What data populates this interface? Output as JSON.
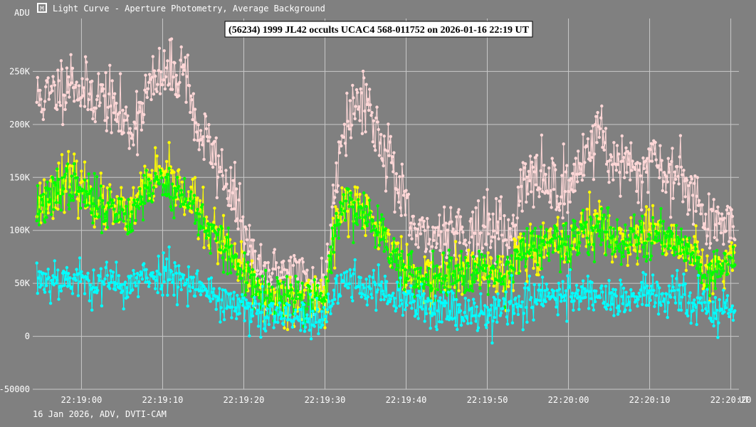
{
  "window": {
    "icon": "light-curve-app-icon",
    "header": "Light Curve - Aperture Photometry, Average Background"
  },
  "footer": "16 Jan 2026, ADV, DVTI-CAM",
  "chart_data": {
    "type": "line",
    "title": "(56234) 1999 JL42 occults UCAC4 568-011752 on 2026-01-16  22:19 UT",
    "ylabel": "ADU",
    "xlabel": "UT",
    "ylim": [
      -50000,
      300000
    ],
    "xlim": [
      -6,
      81
    ],
    "yticks": [
      {
        "v": 250000,
        "label": "250K"
      },
      {
        "v": 200000,
        "label": "200K"
      },
      {
        "v": 150000,
        "label": "150K"
      },
      {
        "v": 100000,
        "label": "100K"
      },
      {
        "v": 50000,
        "label": "50K"
      },
      {
        "v": 0,
        "label": "0"
      },
      {
        "v": -50000,
        "label": "-50000"
      }
    ],
    "xticks": [
      {
        "v": 0,
        "label": "22:19:00"
      },
      {
        "v": 10,
        "label": "22:19:10"
      },
      {
        "v": 20,
        "label": "22:19:20"
      },
      {
        "v": 30,
        "label": "22:19:30"
      },
      {
        "v": 40,
        "label": "22:19:40"
      },
      {
        "v": 50,
        "label": "22:19:50"
      },
      {
        "v": 60,
        "label": "22:20:00"
      },
      {
        "v": 70,
        "label": "22:20:10"
      },
      {
        "v": 80,
        "label": "22:20:20"
      }
    ],
    "sample_interval_s": 0.1,
    "series": [
      {
        "name": "pink",
        "color": "#ffd7d7",
        "noise": 15000,
        "seed": 11,
        "knots": [
          [
            -6,
            225000
          ],
          [
            -4,
            225000
          ],
          [
            -2,
            240000
          ],
          [
            -1,
            245000
          ],
          [
            0,
            230000
          ],
          [
            3,
            225000
          ],
          [
            4,
            215000
          ],
          [
            6,
            195000
          ],
          [
            7,
            210000
          ],
          [
            8,
            230000
          ],
          [
            10,
            245000
          ],
          [
            12,
            250000
          ],
          [
            13,
            255000
          ],
          [
            14,
            195000
          ],
          [
            15,
            190000
          ],
          [
            16,
            175000
          ],
          [
            17,
            160000
          ],
          [
            18,
            145000
          ],
          [
            19,
            125000
          ],
          [
            20,
            95000
          ],
          [
            21,
            75000
          ],
          [
            22,
            55000
          ],
          [
            24,
            60000
          ],
          [
            26,
            65000
          ],
          [
            27,
            55000
          ],
          [
            28,
            50000
          ],
          [
            30,
            45000
          ],
          [
            31,
            125000
          ],
          [
            32,
            195000
          ],
          [
            34,
            220000
          ],
          [
            35,
            230000
          ],
          [
            36,
            200000
          ],
          [
            37,
            185000
          ],
          [
            38,
            170000
          ],
          [
            39,
            140000
          ],
          [
            40,
            115000
          ],
          [
            41,
            100000
          ],
          [
            42,
            90000
          ],
          [
            44,
            95000
          ],
          [
            45,
            105000
          ],
          [
            47,
            100000
          ],
          [
            49,
            95000
          ],
          [
            51,
            105000
          ],
          [
            53,
            90000
          ],
          [
            54,
            140000
          ],
          [
            56,
            150000
          ],
          [
            58,
            145000
          ],
          [
            59,
            140000
          ],
          [
            60,
            135000
          ],
          [
            61,
            155000
          ],
          [
            62,
            175000
          ],
          [
            63,
            180000
          ],
          [
            64,
            200000
          ],
          [
            65,
            165000
          ],
          [
            66,
            165000
          ],
          [
            67,
            160000
          ],
          [
            69,
            150000
          ],
          [
            70,
            175000
          ],
          [
            71,
            170000
          ],
          [
            72,
            150000
          ],
          [
            74,
            150000
          ],
          [
            75,
            145000
          ],
          [
            76,
            130000
          ],
          [
            77,
            100000
          ],
          [
            79,
            110000
          ],
          [
            80,
            115000
          ],
          [
            81,
            100000
          ]
        ]
      },
      {
        "name": "yellow",
        "color": "#ffff00",
        "noise": 12000,
        "seed": 23,
        "knots": [
          [
            -6,
            125000
          ],
          [
            -4,
            130000
          ],
          [
            -3,
            145000
          ],
          [
            -2,
            150000
          ],
          [
            0,
            140000
          ],
          [
            2,
            125000
          ],
          [
            4,
            120000
          ],
          [
            6,
            110000
          ],
          [
            7,
            130000
          ],
          [
            8,
            145000
          ],
          [
            10,
            150000
          ],
          [
            11,
            145000
          ],
          [
            12,
            140000
          ],
          [
            14,
            125000
          ],
          [
            15,
            110000
          ],
          [
            16,
            100000
          ],
          [
            17,
            90000
          ],
          [
            18,
            80000
          ],
          [
            19,
            70000
          ],
          [
            20,
            60000
          ],
          [
            22,
            40000
          ],
          [
            24,
            35000
          ],
          [
            26,
            40000
          ],
          [
            28,
            35000
          ],
          [
            29,
            40000
          ],
          [
            30,
            35000
          ],
          [
            31,
            95000
          ],
          [
            32,
            120000
          ],
          [
            33,
            125000
          ],
          [
            35,
            120000
          ],
          [
            36,
            105000
          ],
          [
            37,
            100000
          ],
          [
            38,
            90000
          ],
          [
            39,
            75000
          ],
          [
            40,
            60000
          ],
          [
            42,
            55000
          ],
          [
            44,
            55000
          ],
          [
            46,
            60000
          ],
          [
            48,
            62000
          ],
          [
            50,
            65000
          ],
          [
            52,
            55000
          ],
          [
            53,
            70000
          ],
          [
            54,
            80000
          ],
          [
            56,
            85000
          ],
          [
            58,
            85000
          ],
          [
            60,
            82000
          ],
          [
            61,
            95000
          ],
          [
            62,
            100000
          ],
          [
            63,
            105000
          ],
          [
            64,
            110000
          ],
          [
            65,
            95000
          ],
          [
            66,
            92000
          ],
          [
            68,
            90000
          ],
          [
            70,
            95000
          ],
          [
            72,
            92000
          ],
          [
            74,
            85000
          ],
          [
            75,
            80000
          ],
          [
            76,
            75000
          ],
          [
            77,
            55000
          ],
          [
            78,
            60000
          ],
          [
            80,
            70000
          ],
          [
            81,
            65000
          ]
        ]
      },
      {
        "name": "green",
        "color": "#00ff00",
        "noise": 11000,
        "seed": 37,
        "knots": [
          [
            -6,
            120000
          ],
          [
            -4,
            125000
          ],
          [
            -3,
            140000
          ],
          [
            -2,
            145000
          ],
          [
            0,
            135000
          ],
          [
            2,
            125000
          ],
          [
            4,
            120000
          ],
          [
            6,
            115000
          ],
          [
            7,
            125000
          ],
          [
            8,
            140000
          ],
          [
            10,
            145000
          ],
          [
            11,
            140000
          ],
          [
            12,
            135000
          ],
          [
            14,
            120000
          ],
          [
            15,
            110000
          ],
          [
            16,
            95000
          ],
          [
            17,
            88000
          ],
          [
            18,
            80000
          ],
          [
            19,
            68000
          ],
          [
            20,
            55000
          ],
          [
            22,
            38000
          ],
          [
            24,
            32000
          ],
          [
            26,
            38000
          ],
          [
            28,
            30000
          ],
          [
            29,
            35000
          ],
          [
            30,
            32000
          ],
          [
            31,
            95000
          ],
          [
            32,
            120000
          ],
          [
            33,
            125000
          ],
          [
            35,
            115000
          ],
          [
            36,
            105000
          ],
          [
            37,
            100000
          ],
          [
            38,
            85000
          ],
          [
            39,
            70000
          ],
          [
            40,
            55000
          ],
          [
            42,
            55000
          ],
          [
            44,
            58000
          ],
          [
            46,
            60000
          ],
          [
            48,
            62000
          ],
          [
            50,
            65000
          ],
          [
            52,
            55000
          ],
          [
            53,
            70000
          ],
          [
            54,
            80000
          ],
          [
            56,
            85000
          ],
          [
            58,
            85000
          ],
          [
            60,
            82000
          ],
          [
            61,
            95000
          ],
          [
            62,
            100000
          ],
          [
            63,
            102000
          ],
          [
            64,
            105000
          ],
          [
            65,
            95000
          ],
          [
            66,
            92000
          ],
          [
            68,
            90000
          ],
          [
            70,
            95000
          ],
          [
            72,
            95000
          ],
          [
            74,
            88000
          ],
          [
            75,
            80000
          ],
          [
            76,
            72000
          ],
          [
            77,
            55000
          ],
          [
            78,
            60000
          ],
          [
            80,
            70000
          ],
          [
            81,
            65000
          ]
        ]
      },
      {
        "name": "cyan",
        "color": "#00ffff",
        "noise": 10000,
        "seed": 53,
        "knots": [
          [
            -6,
            55000
          ],
          [
            -4,
            55000
          ],
          [
            -2,
            55000
          ],
          [
            0,
            52000
          ],
          [
            4,
            50000
          ],
          [
            6,
            48000
          ],
          [
            8,
            55000
          ],
          [
            10,
            60000
          ],
          [
            12,
            58000
          ],
          [
            14,
            50000
          ],
          [
            16,
            40000
          ],
          [
            18,
            32000
          ],
          [
            20,
            25000
          ],
          [
            22,
            20000
          ],
          [
            24,
            18000
          ],
          [
            26,
            18000
          ],
          [
            28,
            15000
          ],
          [
            30,
            12000
          ],
          [
            31,
            40000
          ],
          [
            32,
            50000
          ],
          [
            34,
            52000
          ],
          [
            36,
            45000
          ],
          [
            38,
            38000
          ],
          [
            40,
            32000
          ],
          [
            42,
            30000
          ],
          [
            44,
            28000
          ],
          [
            46,
            25000
          ],
          [
            48,
            25000
          ],
          [
            50,
            22000
          ],
          [
            52,
            28000
          ],
          [
            54,
            32000
          ],
          [
            56,
            35000
          ],
          [
            58,
            38000
          ],
          [
            60,
            40000
          ],
          [
            62,
            42000
          ],
          [
            64,
            40000
          ],
          [
            66,
            35000
          ],
          [
            68,
            35000
          ],
          [
            70,
            40000
          ],
          [
            72,
            38000
          ],
          [
            74,
            35000
          ],
          [
            76,
            30000
          ],
          [
            78,
            25000
          ],
          [
            80,
            25000
          ],
          [
            81,
            22000
          ]
        ]
      }
    ]
  }
}
